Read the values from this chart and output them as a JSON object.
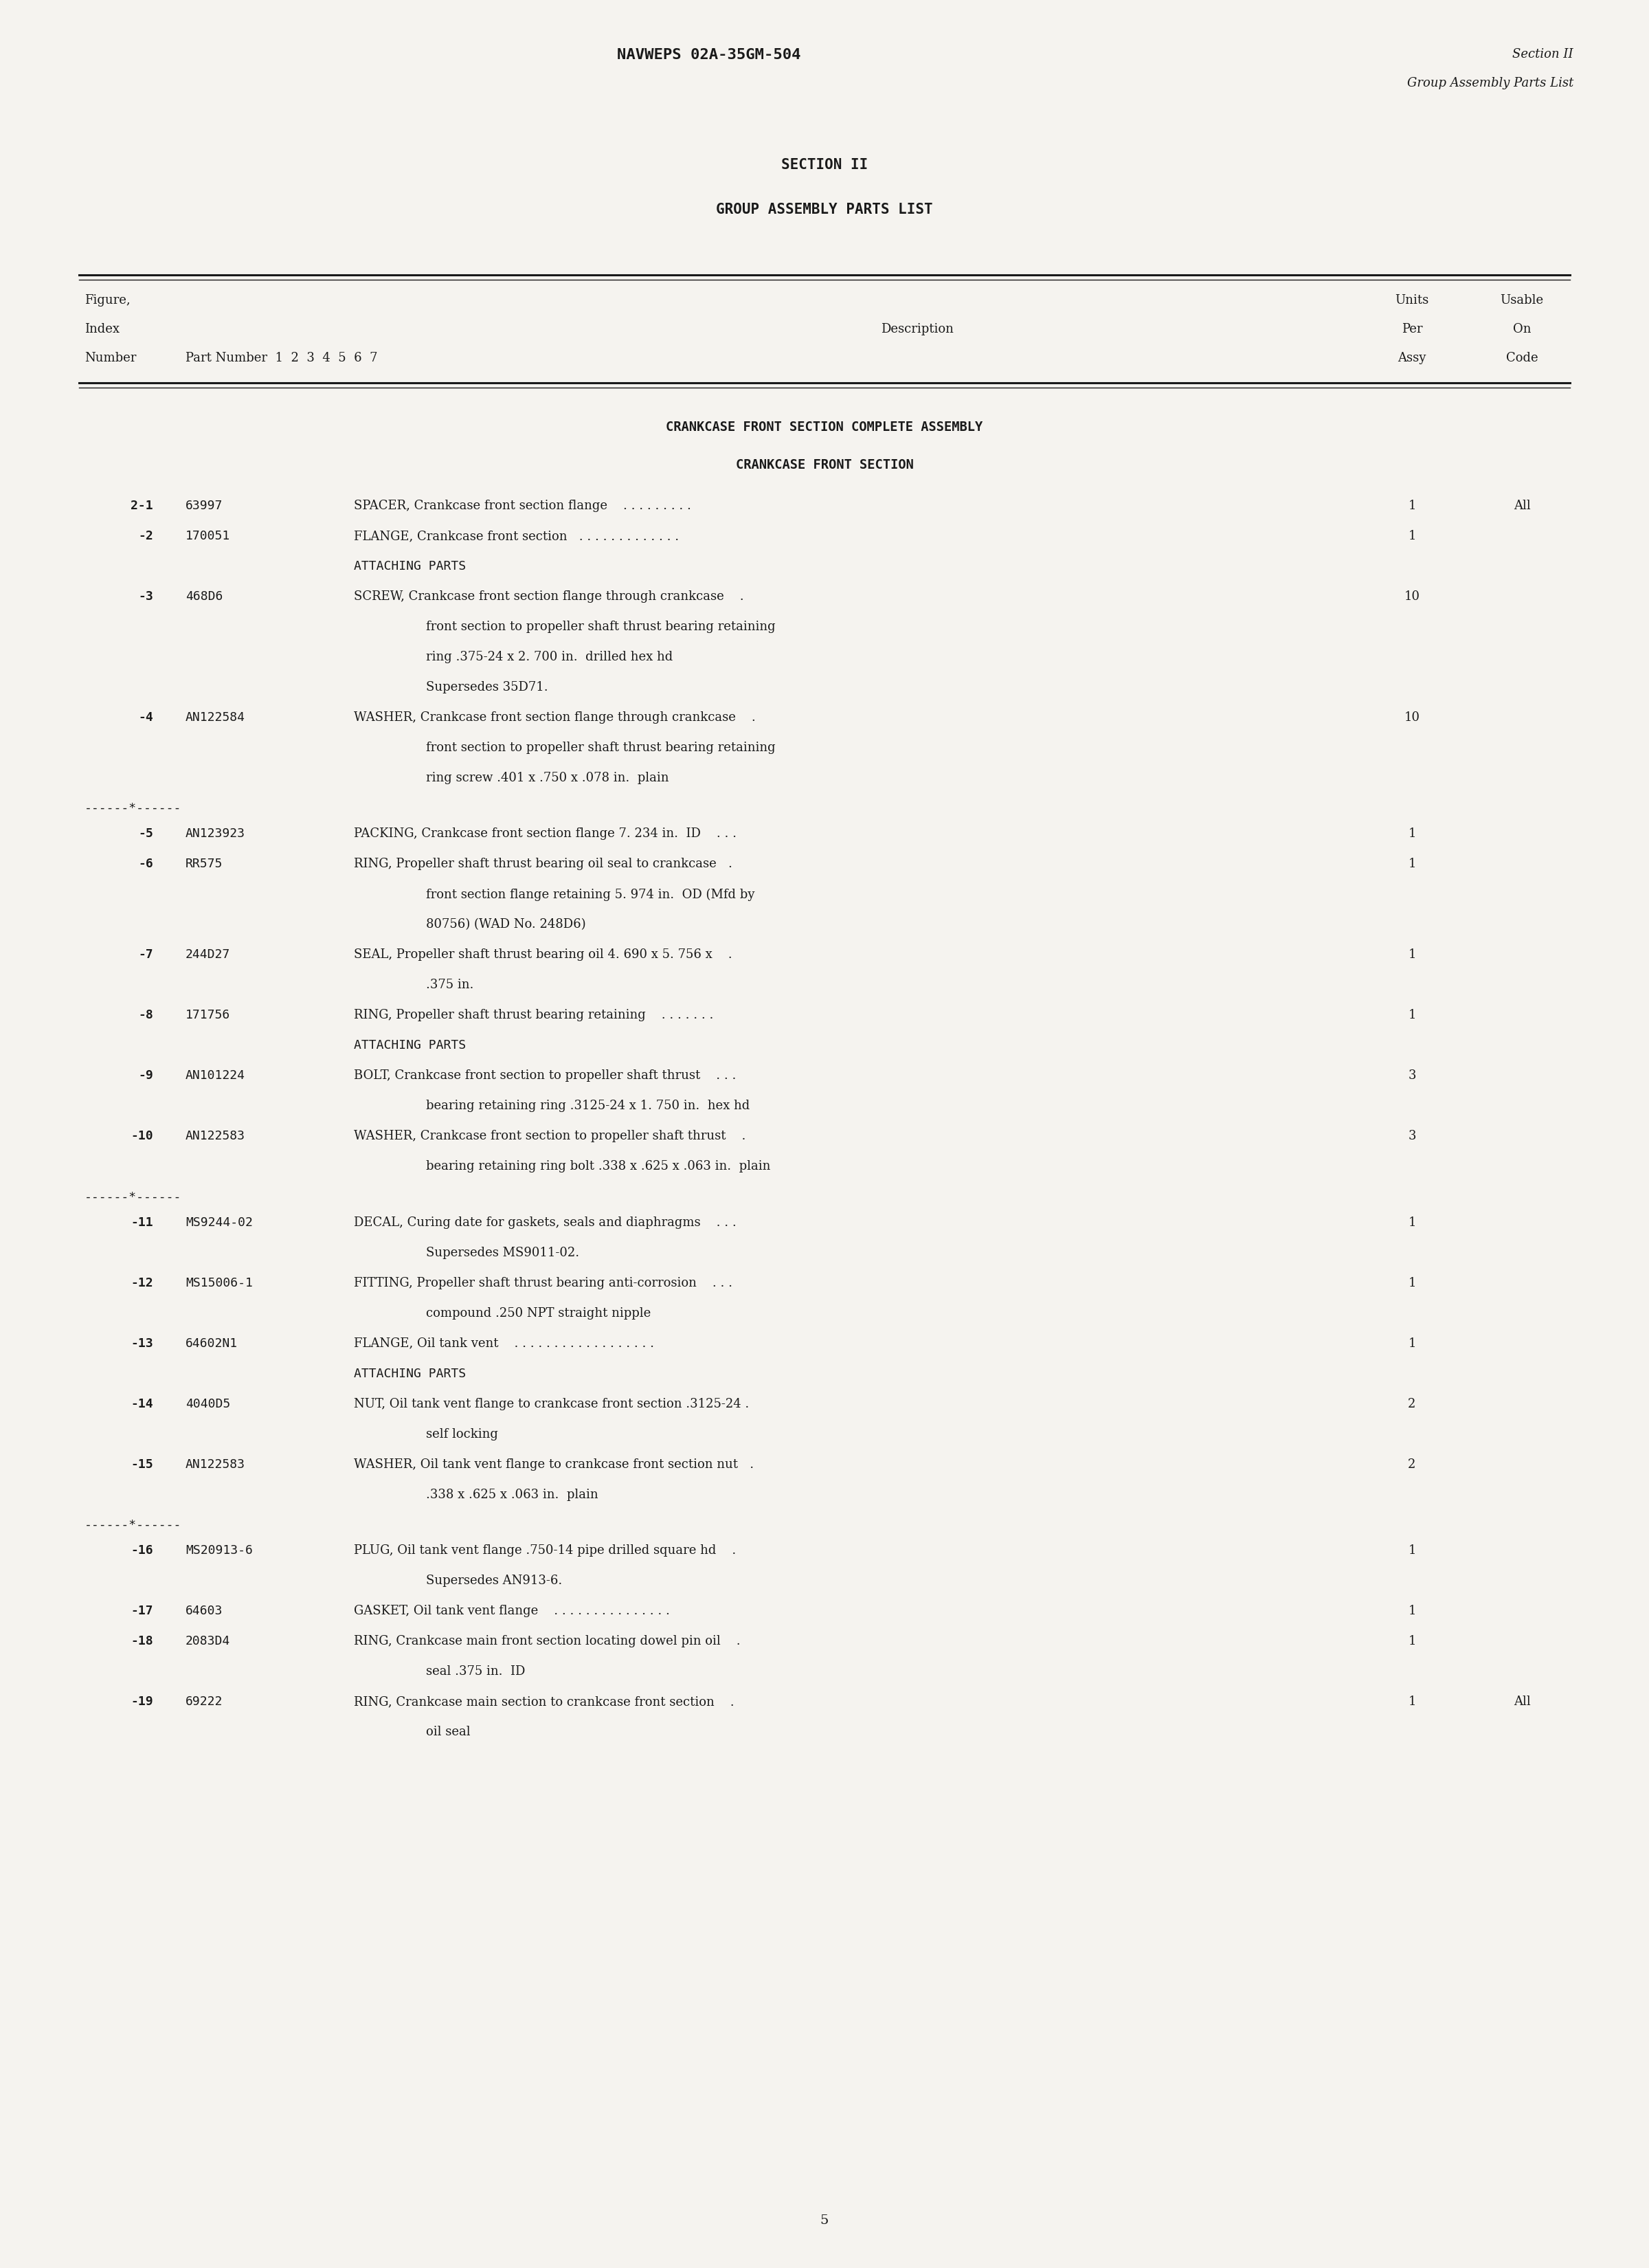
{
  "bg_color": "#f5f3ef",
  "text_color": "#1a1a1a",
  "page_width": 24.0,
  "page_height": 33.0,
  "header_left": "NAVWEPS 02A-35GM-504",
  "header_right_line1": "Section II",
  "header_right_line2": "Group Assembly Parts List",
  "section_title1": "SECTION II",
  "section_title2": "GROUP ASSEMBLY PARTS LIST",
  "assembly_title1": "CRANKCASE FRONT SECTION COMPLETE ASSEMBLY",
  "assembly_title2": "CRANKCASE FRONT SECTION",
  "rows": [
    {
      "index": "2-1",
      "part": "63997",
      "desc": "SPACER, Crankcase front section flange    . . . . . . . . .",
      "units": "1",
      "usable": "All",
      "cont": []
    },
    {
      "index": "-2",
      "part": "170051",
      "desc": "FLANGE, Crankcase front section   . . . . . . . . . . . . .",
      "units": "1",
      "usable": "",
      "cont": []
    },
    {
      "index": "",
      "part": "",
      "desc": "ATTACHING PARTS",
      "units": "",
      "usable": "",
      "cont": [],
      "type": "label"
    },
    {
      "index": "-3",
      "part": "468D6",
      "desc": "SCREW, Crankcase front section flange through crankcase    .",
      "units": "10",
      "usable": "",
      "cont": [
        "front section to propeller shaft thrust bearing retaining",
        "ring .375-24 x 2. 700 in.  drilled hex hd",
        "Supersedes 35D71."
      ]
    },
    {
      "index": "-4",
      "part": "AN122584",
      "desc": "WASHER, Crankcase front section flange through crankcase    .",
      "units": "10",
      "usable": "",
      "cont": [
        "front section to propeller shaft thrust bearing retaining",
        "ring screw .401 x .750 x .078 in.  plain"
      ]
    },
    {
      "index": "",
      "part": "",
      "desc": "------*------",
      "units": "",
      "usable": "",
      "cont": [],
      "type": "sep"
    },
    {
      "index": "-5",
      "part": "AN123923",
      "desc": "PACKING, Crankcase front section flange 7. 234 in.  ID    . . .",
      "units": "1",
      "usable": "",
      "cont": []
    },
    {
      "index": "-6",
      "part": "RR575",
      "desc": "RING, Propeller shaft thrust bearing oil seal to crankcase   .",
      "units": "1",
      "usable": "",
      "cont": [
        "front section flange retaining 5. 974 in.  OD (Mfd by",
        "80756) (WAD No. 248D6)"
      ]
    },
    {
      "index": "-7",
      "part": "244D27",
      "desc": "SEAL, Propeller shaft thrust bearing oil 4. 690 x 5. 756 x    .",
      "units": "1",
      "usable": "",
      "cont": [
        ".375 in."
      ]
    },
    {
      "index": "-8",
      "part": "171756",
      "desc": "RING, Propeller shaft thrust bearing retaining    . . . . . . .",
      "units": "1",
      "usable": "",
      "cont": []
    },
    {
      "index": "",
      "part": "",
      "desc": "ATTACHING PARTS",
      "units": "",
      "usable": "",
      "cont": [],
      "type": "label"
    },
    {
      "index": "-9",
      "part": "AN101224",
      "desc": "BOLT, Crankcase front section to propeller shaft thrust    . . .",
      "units": "3",
      "usable": "",
      "cont": [
        "bearing retaining ring .3125-24 x 1. 750 in.  hex hd"
      ]
    },
    {
      "index": "-10",
      "part": "AN122583",
      "desc": "WASHER, Crankcase front section to propeller shaft thrust    .",
      "units": "3",
      "usable": "",
      "cont": [
        "bearing retaining ring bolt .338 x .625 x .063 in.  plain"
      ]
    },
    {
      "index": "",
      "part": "",
      "desc": "------*------",
      "units": "",
      "usable": "",
      "cont": [],
      "type": "sep"
    },
    {
      "index": "-11",
      "part": "MS9244-02",
      "desc": "DECAL, Curing date for gaskets, seals and diaphragms    . . .",
      "units": "1",
      "usable": "",
      "cont": [
        "Supersedes MS9011-02."
      ]
    },
    {
      "index": "-12",
      "part": "MS15006-1",
      "desc": "FITTING, Propeller shaft thrust bearing anti-corrosion    . . .",
      "units": "1",
      "usable": "",
      "cont": [
        "compound .250 NPT straight nipple"
      ]
    },
    {
      "index": "-13",
      "part": "64602N1",
      "desc": "FLANGE, Oil tank vent    . . . . . . . . . . . . . . . . . .",
      "units": "1",
      "usable": "",
      "cont": []
    },
    {
      "index": "",
      "part": "",
      "desc": "ATTACHING PARTS",
      "units": "",
      "usable": "",
      "cont": [],
      "type": "label"
    },
    {
      "index": "-14",
      "part": "4040D5",
      "desc": "NUT, Oil tank vent flange to crankcase front section .3125-24 .",
      "units": "2",
      "usable": "",
      "cont": [
        "self locking"
      ]
    },
    {
      "index": "-15",
      "part": "AN122583",
      "desc": "WASHER, Oil tank vent flange to crankcase front section nut   .",
      "units": "2",
      "usable": "",
      "cont": [
        ".338 x .625 x .063 in.  plain"
      ]
    },
    {
      "index": "",
      "part": "",
      "desc": "------*------",
      "units": "",
      "usable": "",
      "cont": [],
      "type": "sep"
    },
    {
      "index": "-16",
      "part": "MS20913-6",
      "desc": "PLUG, Oil tank vent flange .750-14 pipe drilled square hd    .",
      "units": "1",
      "usable": "",
      "cont": [
        "Supersedes AN913-6."
      ]
    },
    {
      "index": "-17",
      "part": "64603",
      "desc": "GASKET, Oil tank vent flange    . . . . . . . . . . . . . . .",
      "units": "1",
      "usable": "",
      "cont": []
    },
    {
      "index": "-18",
      "part": "2083D4",
      "desc": "RING, Crankcase main front section locating dowel pin oil    .",
      "units": "1",
      "usable": "",
      "cont": [
        "seal .375 in.  ID"
      ]
    },
    {
      "index": "-19",
      "part": "69222",
      "desc": "RING, Crankcase main section to crankcase front section    .",
      "units": "1",
      "usable": "All",
      "cont": [
        "oil seal"
      ]
    }
  ],
  "page_number": "5"
}
